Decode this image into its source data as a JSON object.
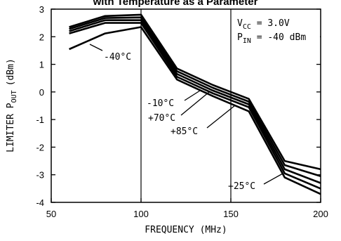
{
  "chart_data": {
    "type": "line",
    "title": "with Temperature as a Parameter",
    "xlabel": "FREQUENCY (MHz)",
    "ylabel_main": "LIMITER P",
    "ylabel_sub": "OUT",
    "ylabel_unit": "(dBm)",
    "xlim": [
      50,
      200
    ],
    "ylim": [
      -4,
      3
    ],
    "x_ticks": [
      50,
      100,
      150,
      200
    ],
    "x_tick_labels": [
      "50",
      "100",
      "150",
      "200"
    ],
    "y_ticks": [
      -4,
      -3,
      -2,
      -1,
      0,
      1,
      2,
      3
    ],
    "y_tick_labels": [
      "-4",
      "-3",
      "-2",
      "-1",
      "0",
      "1",
      "2",
      "3"
    ],
    "grid": "lines at x = 100 and x = 150",
    "conditions": [
      {
        "main": "V",
        "sub": "CC",
        "rest": " = 3.0V"
      },
      {
        "main": "P",
        "sub": "IN",
        "rest": " = -40 dBm"
      }
    ],
    "series": [
      {
        "name": "-40°C",
        "x": [
          60,
          80,
          100,
          120,
          140,
          160,
          180,
          200
        ],
        "y": [
          1.55,
          2.12,
          2.35,
          0.45,
          -0.15,
          -0.7,
          -3.1,
          -3.7
        ]
      },
      {
        "name": "-10°C",
        "x": [
          60,
          80,
          100,
          120,
          140,
          160,
          180,
          200
        ],
        "y": [
          2.12,
          2.5,
          2.5,
          0.55,
          -0.05,
          -0.55,
          -2.95,
          -3.5
        ]
      },
      {
        "name": "+25°C",
        "x": [
          60,
          80,
          100,
          120,
          140,
          160,
          180,
          200
        ],
        "y": [
          2.2,
          2.6,
          2.6,
          0.65,
          0.05,
          -0.45,
          -2.8,
          -3.3
        ]
      },
      {
        "name": "+70°C",
        "x": [
          60,
          80,
          100,
          120,
          140,
          160,
          180,
          200
        ],
        "y": [
          2.28,
          2.68,
          2.7,
          0.75,
          0.15,
          -0.35,
          -2.65,
          -3.05
        ]
      },
      {
        "name": "+85°C",
        "x": [
          60,
          80,
          100,
          120,
          140,
          160,
          180,
          200
        ],
        "y": [
          2.35,
          2.75,
          2.8,
          0.85,
          0.25,
          -0.25,
          -2.5,
          -2.8
        ]
      }
    ],
    "annotations": [
      "-40°C",
      "-10°C",
      "+70°C",
      "+85°C",
      "+25°C"
    ]
  }
}
